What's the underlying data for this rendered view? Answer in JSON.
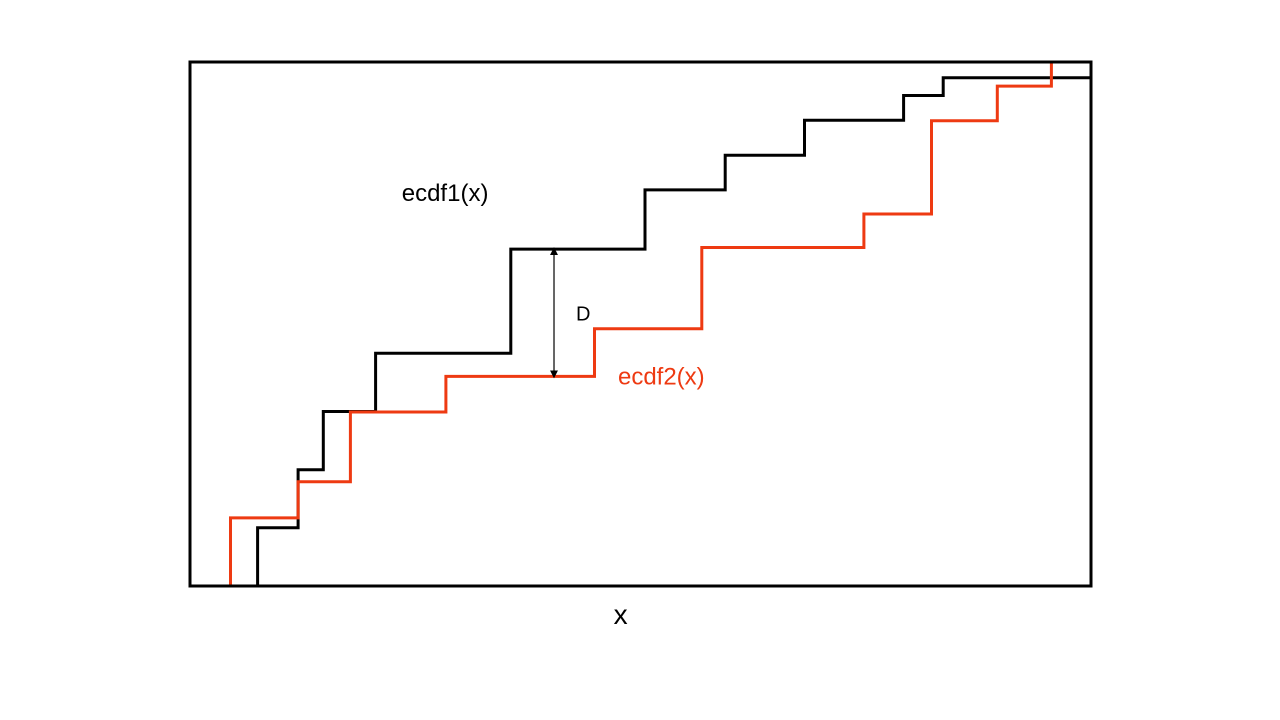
{
  "chart_data": {
    "type": "line",
    "step": true,
    "xlabel": "x",
    "ylabel": "",
    "title": "",
    "xlim": [
      0,
      100
    ],
    "ylim": [
      0,
      1
    ],
    "grid": false,
    "series": [
      {
        "name": "ecdf1(x)",
        "color": "#000000",
        "x": [
          7.5,
          12.0,
          14.8,
          20.6,
          35.6,
          50.5,
          59.4,
          68.2,
          79.2,
          83.6,
          100
        ],
        "y": [
          0.111,
          0.222,
          0.333,
          0.444,
          0.643,
          0.756,
          0.822,
          0.889,
          0.936,
          0.97,
          1.0
        ]
      },
      {
        "name": "ecdf2(x)",
        "color": "#EE3A12",
        "x": [
          4.5,
          12.0,
          17.8,
          28.4,
          44.9,
          56.8,
          74.8,
          82.3,
          89.6,
          95.6
        ],
        "y": [
          0.13,
          0.199,
          0.332,
          0.4,
          0.491,
          0.646,
          0.71,
          0.888,
          0.954,
          1.0
        ]
      }
    ],
    "annotations": [
      {
        "text": "D",
        "type": "double-arrow",
        "x": 40.4,
        "y_from": 0.4,
        "y_to": 0.643
      }
    ]
  }
}
